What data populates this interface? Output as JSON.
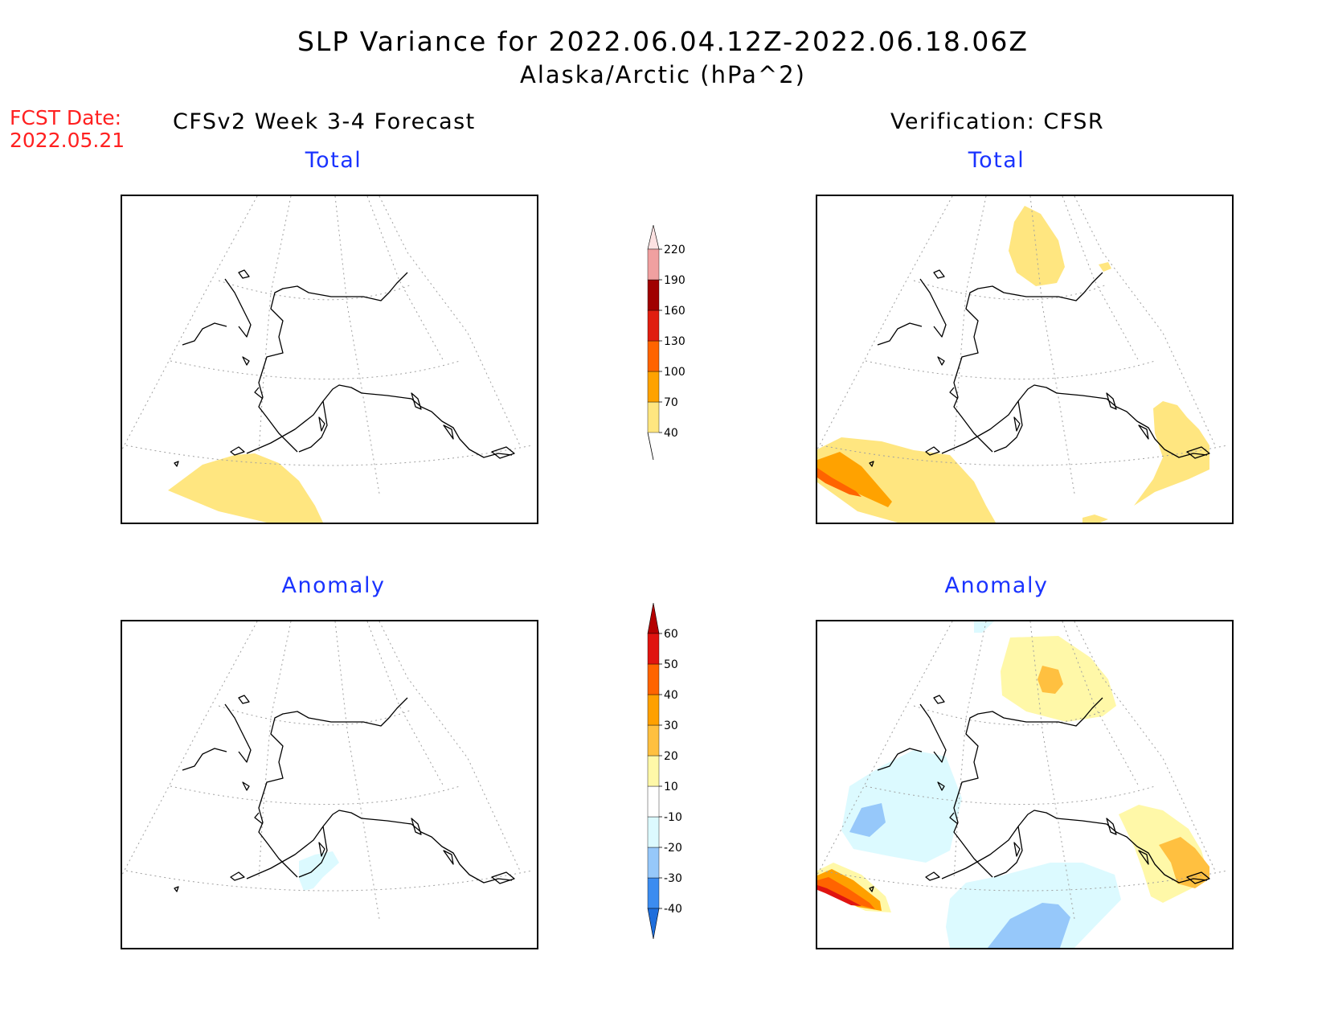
{
  "title": {
    "line1": "SLP Variance for 2022.06.04.12Z-2022.06.18.06Z",
    "line2": "Alaska/Arctic (hPa^2)"
  },
  "forecast_date": {
    "label": "FCST Date:",
    "value": "2022.05.21"
  },
  "columns": {
    "left": "CFSv2 Week 3-4 Forecast",
    "right": "Verification: CFSR"
  },
  "panels": {
    "top_left": "Total",
    "top_right": "Total",
    "bottom_left": "Anomaly",
    "bottom_right": "Anomaly"
  },
  "colorbars": {
    "total": {
      "labels": [
        "40",
        "70",
        "100",
        "130",
        "160",
        "190",
        "220"
      ],
      "colors": [
        "#ffe680",
        "#ffa200",
        "#ff6400",
        "#e01e10",
        "#a00000",
        "#f0a0a0",
        "#fde2e2"
      ]
    },
    "anomaly": {
      "labels": [
        "-40",
        "-30",
        "-20",
        "-10",
        "10",
        "20",
        "30",
        "40",
        "50",
        "60"
      ],
      "colors": [
        "#1e6edc",
        "#3c8cf0",
        "#96c8fa",
        "#dcfaff",
        "#ffffff",
        "#fff8a8",
        "#ffc040",
        "#ffa000",
        "#ff6400",
        "#e01410",
        "#b40000"
      ]
    }
  }
}
